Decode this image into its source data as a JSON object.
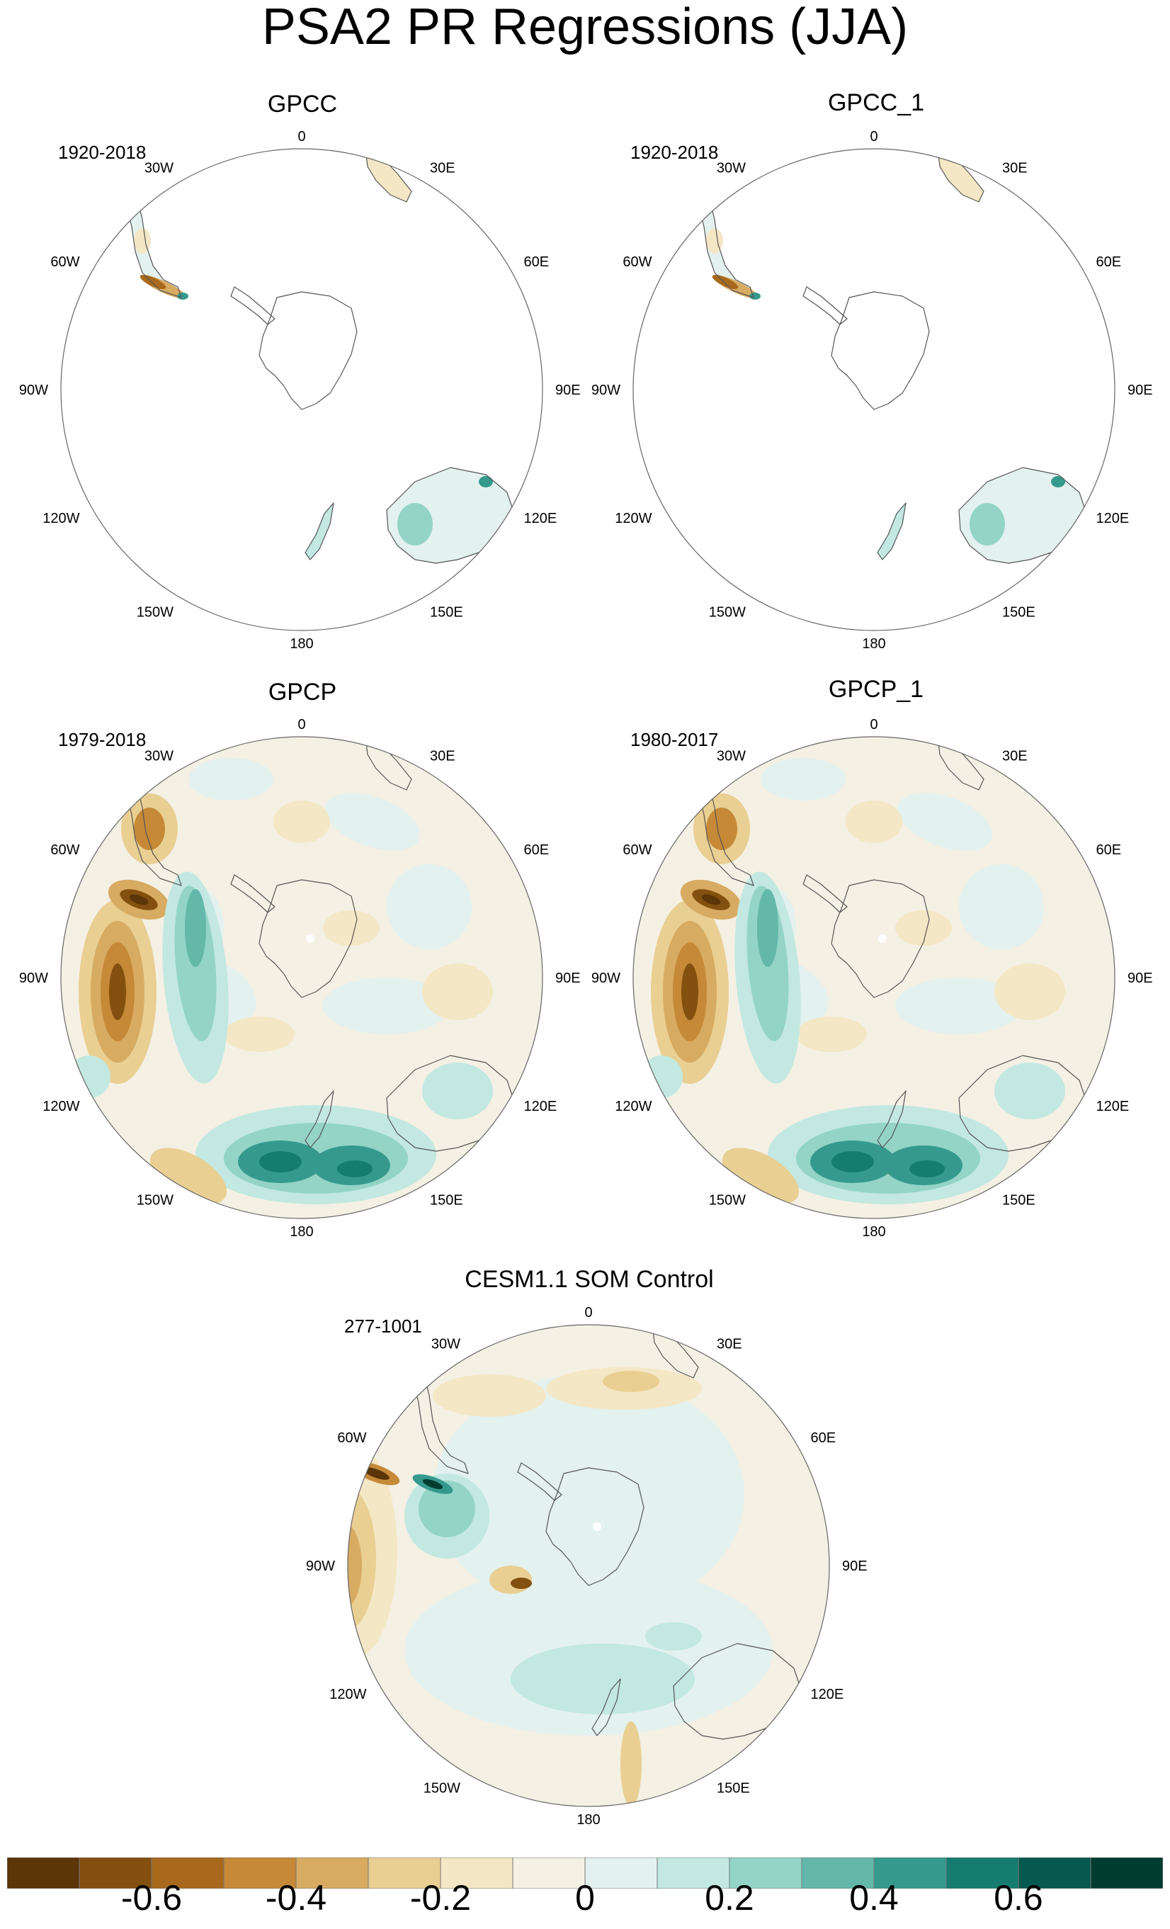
{
  "figure": {
    "title": "PSA2 PR Regressions (JJA)"
  },
  "panels": [
    {
      "title": "GPCC",
      "period": "1920-2018",
      "field": "sparse-gpcc"
    },
    {
      "title": "GPCC_1",
      "period": "1920-2018",
      "field": "sparse-gpcc"
    },
    {
      "title": "GPCP",
      "period": "1979-2018",
      "field": "gpcp"
    },
    {
      "title": "GPCP_1",
      "period": "1980-2017",
      "field": "gpcp"
    },
    {
      "title": "CESM1.1 SOM Control",
      "period": "277-1001",
      "field": "cesm"
    }
  ],
  "longitude_labels": [
    "0",
    "30E",
    "60E",
    "90E",
    "120E",
    "150E",
    "180",
    "150W",
    "120W",
    "90W",
    "60W",
    "30W"
  ],
  "colorbar": {
    "colors": [
      "#5c3508",
      "#83500f",
      "#a8691d",
      "#c58937",
      "#d8ab62",
      "#e9cf92",
      "#f4e7c5",
      "#f4f0e4",
      "#e3f1ef",
      "#c2e8e1",
      "#93d4c7",
      "#63b8aa",
      "#359a8d",
      "#167c70",
      "#05594f",
      "#003c30"
    ],
    "tick_labels": [
      "-0.6",
      "-0.4",
      "-0.2",
      "0",
      "0.2",
      "0.4",
      "0.6"
    ],
    "tick_values": [
      -0.6,
      -0.4,
      -0.2,
      0,
      0.2,
      0.4,
      0.6
    ],
    "range": [
      -0.8,
      0.8
    ]
  }
}
